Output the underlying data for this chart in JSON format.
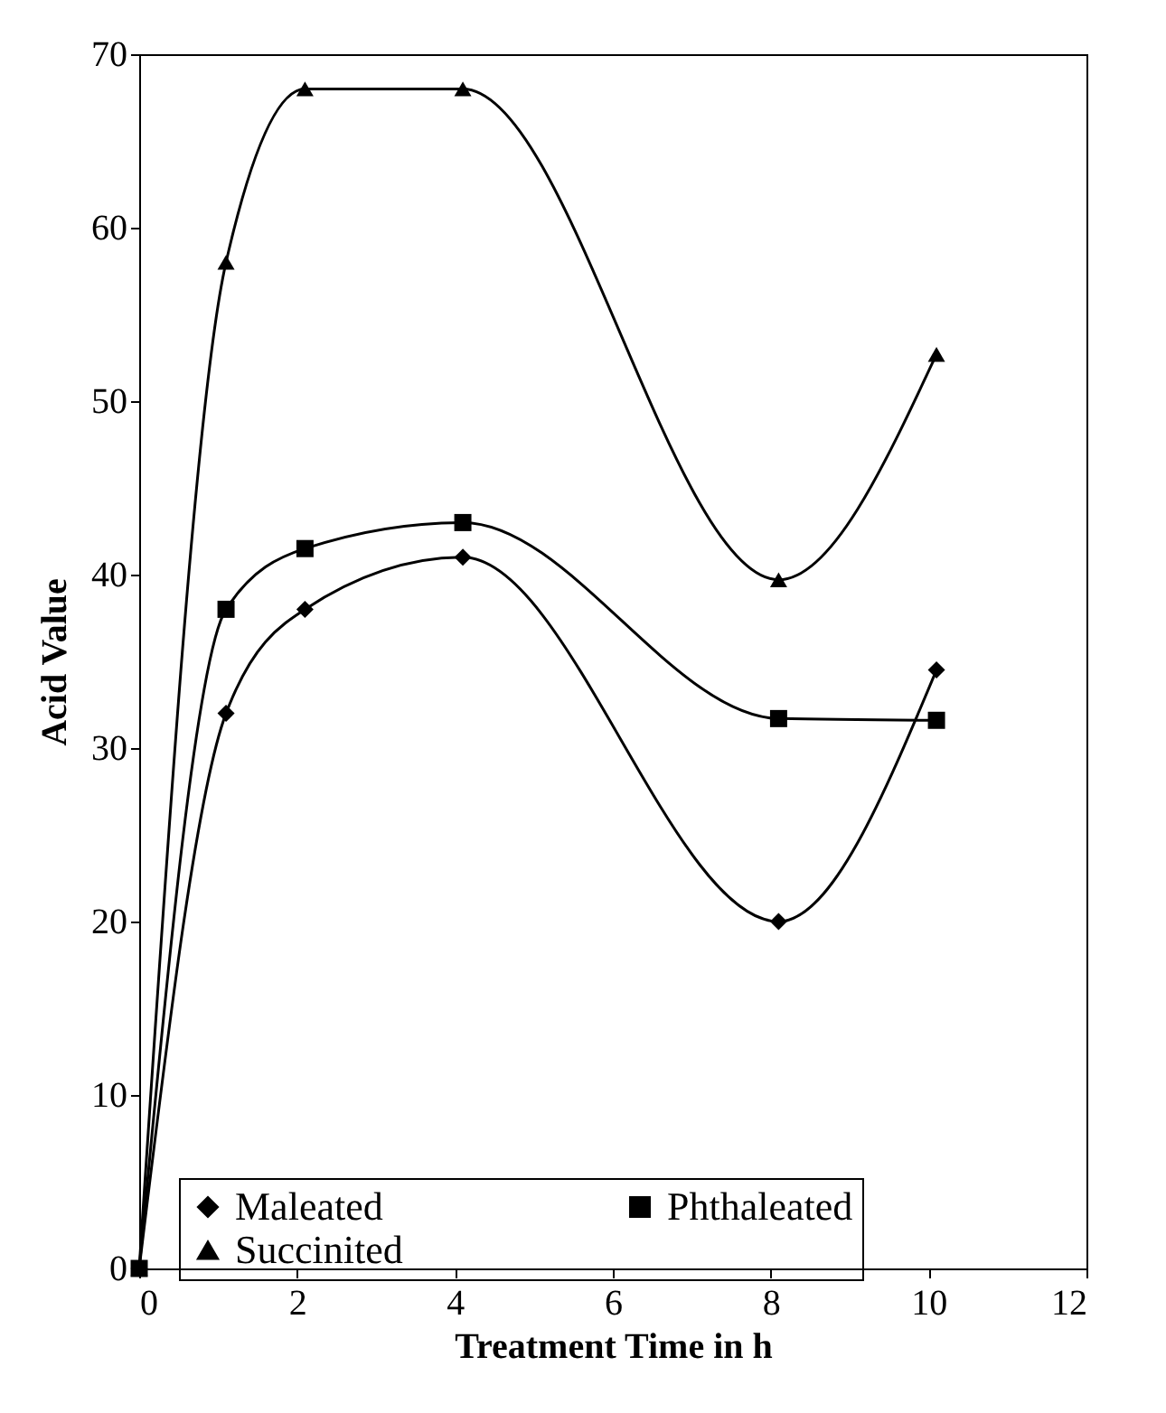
{
  "chart_data": {
    "type": "line",
    "xlabel": "Treatment Time in h",
    "ylabel": "Acid Value",
    "x": [
      0,
      1.1,
      2.1,
      4.1,
      8.1,
      10.1
    ],
    "series": [
      {
        "name": "Maleated",
        "color": "#000000",
        "marker": "diamond",
        "values": [
          0,
          32,
          38,
          41,
          20,
          34.5
        ]
      },
      {
        "name": "Phthaleated",
        "color": "#000000",
        "marker": "square",
        "values": [
          0,
          38,
          41.5,
          43,
          31.7,
          31.6
        ]
      },
      {
        "name": "Succinited",
        "color": "#000000",
        "marker": "triangle",
        "values": [
          0,
          58,
          68,
          68,
          39.7,
          52.7
        ]
      }
    ],
    "xlim": [
      0,
      12
    ],
    "xticks": [
      0,
      2,
      4,
      6,
      8,
      10,
      12
    ],
    "ylim": [
      0,
      70
    ],
    "yticks": [
      0,
      10,
      20,
      30,
      40,
      50,
      60,
      70
    ],
    "grid": false,
    "legend": "bottom",
    "line_style": "solid"
  }
}
